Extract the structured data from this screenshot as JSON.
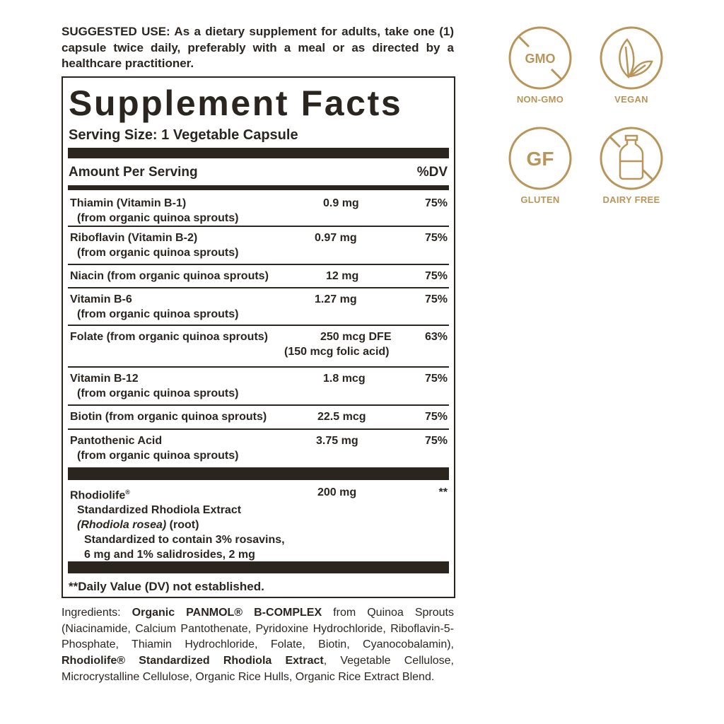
{
  "suggested_use": {
    "label": "SUGGESTED USE:",
    "text": " As a dietary supplement for adults, take one (1) capsule twice daily, preferably with a meal or as directed by a healthcare practitioner."
  },
  "facts": {
    "title": "Supplement Facts",
    "serving_size": "Serving Size: 1 Vegetable Capsule",
    "amount_header": "Amount Per Serving",
    "dv_header": "%DV",
    "rows": [
      {
        "name": "Thiamin (Vitamin B-1)",
        "sub": "(from organic quinoa sprouts)",
        "amount": "0.9 mg",
        "dv": "75%"
      },
      {
        "name": "Riboflavin (Vitamin B-2)",
        "sub": "(from organic quinoa sprouts)",
        "amount": "0.97 mg",
        "dv": "75%"
      },
      {
        "name": "Niacin (from organic quinoa sprouts)",
        "amount": "12 mg",
        "dv": "75%"
      },
      {
        "name": "Vitamin B-6",
        "sub": "(from organic quinoa sprouts)",
        "amount": "1.27 mg",
        "dv": "75%"
      },
      {
        "name": "Folate (from organic quinoa sprouts)",
        "amount": "250 mcg DFE",
        "amount2": "(150 mcg folic acid)",
        "dv": "63%"
      },
      {
        "name": "Vitamin B-12",
        "sub": "(from organic quinoa sprouts)",
        "amount": "1.8 mcg",
        "dv": "75%"
      },
      {
        "name": "Biotin (from organic quinoa sprouts)",
        "amount": "22.5 mcg",
        "dv": "75%"
      },
      {
        "name": "Pantothenic Acid",
        "sub": "(from organic quinoa sprouts)",
        "amount": "3.75 mg",
        "dv": "75%"
      }
    ],
    "rhodio": {
      "name": "Rhodiolife",
      "reg": "®",
      "line2": "Standardized Rhodiola Extract",
      "line3_italic": "(Rhodiola rosea)",
      "line3_rest": " (root)",
      "line4": "Standardized to contain 3% rosavins,",
      "line5": "6 mg and 1% salidrosides, 2 mg",
      "amount": "200 mg",
      "dv": "**"
    },
    "footnote": "**Daily Value (DV) not established."
  },
  "ingredients": {
    "label": "Ingredients: ",
    "b1": "Organic PANMOL® B-COMPLEX",
    "t1": " from Quinoa Sprouts (Niacinamide, Calcium Pantothenate, Pyridoxine Hydrochloride, Riboflavin-5-Phosphate, Thiamin Hydrochloride, Folate, Biotin, Cyanocobalamin), ",
    "b2": "Rhodiolife® Standardized Rhodiola Extract",
    "t2": ", Vegetable Cellulose, Microcrystalline Cellulose, Organic Rice Hulls, Organic Rice Extract Blend."
  },
  "badges": [
    {
      "icon": "non-gmo-icon",
      "inner": "GMO",
      "label": "NON-GMO"
    },
    {
      "icon": "leaf-icon",
      "label": "VEGAN"
    },
    {
      "icon": "gluten-free-icon",
      "inner": "GF",
      "label": "GLUTEN"
    },
    {
      "icon": "dairy-free-bottle-icon",
      "label": "DAIRY FREE"
    }
  ],
  "colors": {
    "text": "#2b2520",
    "gold": "#b8955a"
  }
}
